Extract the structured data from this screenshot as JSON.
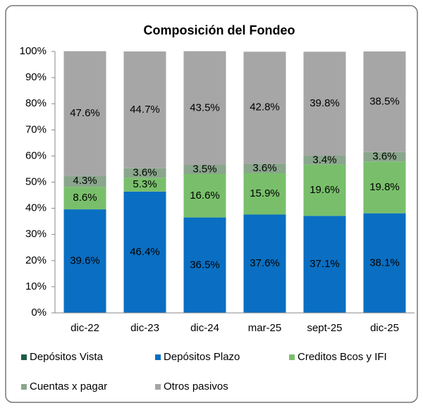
{
  "chart_data": {
    "type": "stacked_bar",
    "title": "Composición del Fondeo",
    "categories": [
      "dic-22",
      "dic-23",
      "dic-24",
      "mar-25",
      "sept-25",
      "dic-25"
    ],
    "series": [
      {
        "name": "Depósitos Vista",
        "color": "#1f5c45",
        "values": [
          0,
          0,
          0,
          0,
          0,
          0
        ]
      },
      {
        "name": "Depósitos Plazo",
        "color": "#0a6fc2",
        "label_color": "#ffffff",
        "values": [
          39.6,
          46.4,
          36.5,
          37.6,
          37.1,
          38.1
        ],
        "value_labels": [
          "39.6%",
          "46.4%",
          "36.5%",
          "37.6%",
          "37.1%",
          "38.1%"
        ]
      },
      {
        "name": "Creditos Bcos y IFI",
        "color": "#79bf6b",
        "label_color": "#000000",
        "values": [
          8.6,
          5.3,
          16.6,
          15.9,
          19.6,
          19.8
        ],
        "value_labels": [
          "8.6%",
          "5.3%",
          "16.6%",
          "15.9%",
          "19.6%",
          "19.8%"
        ]
      },
      {
        "name": "Cuentas x pagar",
        "color": "#8aa68c",
        "label_color": "#000000",
        "values": [
          4.3,
          3.6,
          3.5,
          3.6,
          3.4,
          3.6
        ],
        "value_labels": [
          "4.3%",
          "3.6%",
          "3.5%",
          "3.6%",
          "3.4%",
          "3.6%"
        ]
      },
      {
        "name": "Otros pasivos",
        "color": "#a6a6a6",
        "label_color": "#000000",
        "values": [
          47.6,
          44.7,
          43.5,
          42.8,
          39.8,
          38.5
        ],
        "value_labels": [
          "47.6%",
          "44.7%",
          "43.5%",
          "42.8%",
          "39.8%",
          "38.5%"
        ]
      }
    ],
    "ylim": [
      0,
      100
    ],
    "yticks": [
      {
        "value": 0,
        "label": "0%"
      },
      {
        "value": 10,
        "label": "10%"
      },
      {
        "value": 20,
        "label": "20%"
      },
      {
        "value": 30,
        "label": "30%"
      },
      {
        "value": 40,
        "label": "40%"
      },
      {
        "value": 50,
        "label": "50%"
      },
      {
        "value": 60,
        "label": "60%"
      },
      {
        "value": 70,
        "label": "70%"
      },
      {
        "value": 80,
        "label": "80%"
      },
      {
        "value": 90,
        "label": "90%"
      },
      {
        "value": 100,
        "label": "100%"
      }
    ],
    "legend": "bottom"
  }
}
